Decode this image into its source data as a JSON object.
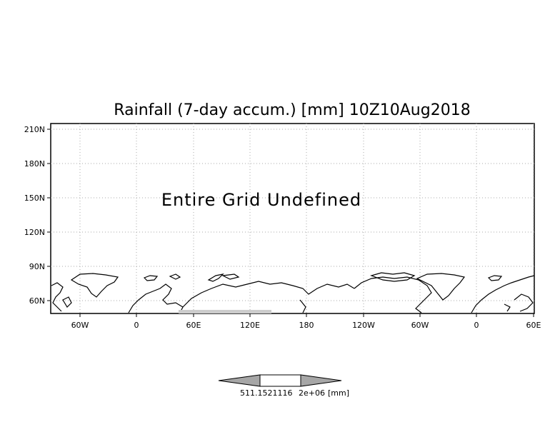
{
  "map": {
    "title": "Rainfall (7-day accum.) [mm] 10Z10Aug2018",
    "message": "Entire Grid Undefined",
    "lat_ticks": [
      "210N",
      "180N",
      "150N",
      "120N",
      "90N",
      "60N"
    ],
    "lon_ticks": [
      "60W",
      "0",
      "60E",
      "120E",
      "180",
      "120W",
      "60W",
      "0",
      "60E"
    ],
    "colorbar": {
      "value_label": "511.1521116",
      "exponent_label": "2e+06",
      "unit_label": "[mm]"
    }
  }
}
